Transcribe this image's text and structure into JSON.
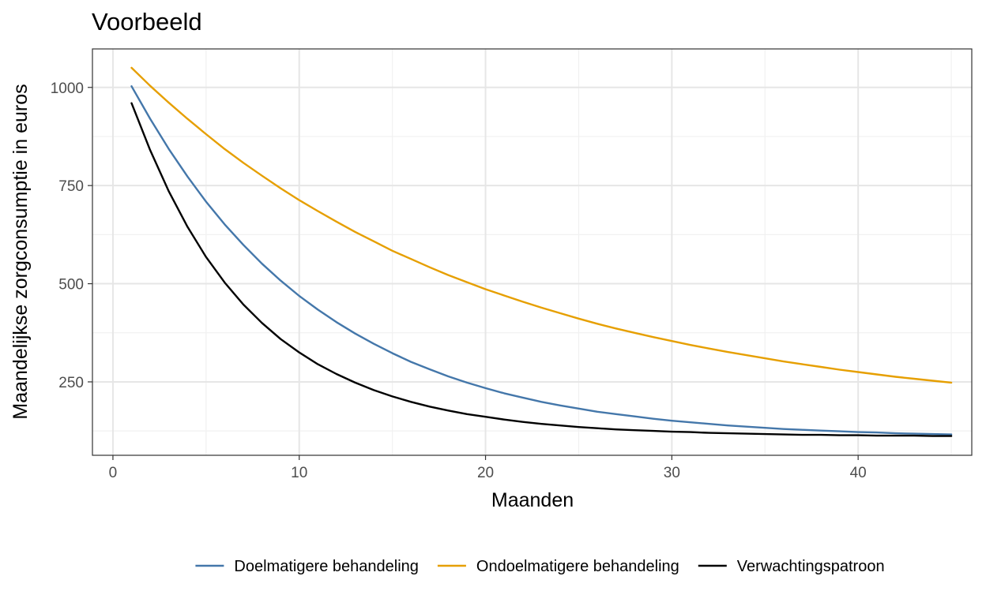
{
  "chart_data": {
    "type": "line",
    "title": "Voorbeeld",
    "xlabel": "Maanden",
    "ylabel": "Maandelijkse zorgconsumptie in euros",
    "xlim": [
      -1.1,
      46.1
    ],
    "ylim": [
      63,
      1098
    ],
    "x_ticks": [
      0,
      10,
      20,
      30,
      40
    ],
    "y_ticks": [
      250,
      500,
      750,
      1000
    ],
    "grid": true,
    "legend_position": "bottom",
    "x": [
      1,
      2,
      3,
      4,
      5,
      6,
      7,
      8,
      9,
      10,
      11,
      12,
      13,
      14,
      15,
      16,
      17,
      18,
      19,
      20,
      21,
      22,
      23,
      24,
      25,
      26,
      27,
      28,
      29,
      30,
      31,
      32,
      33,
      34,
      35,
      36,
      37,
      38,
      39,
      40,
      41,
      42,
      43,
      44,
      45
    ],
    "series": [
      {
        "name": "Doelmatigere behandeling",
        "color": "#4477aa",
        "values": [
          1003,
          920,
          843,
          773,
          709,
          651,
          599,
          551,
          508,
          469,
          434,
          402,
          373,
          347,
          323,
          301,
          282,
          264,
          248,
          234,
          221,
          210,
          199,
          190,
          182,
          174,
          168,
          162,
          156,
          151,
          147,
          143,
          139,
          136,
          133,
          130,
          128,
          126,
          124,
          122,
          121,
          119,
          118,
          117,
          116
        ]
      },
      {
        "name": "Ondoelmatigere behandeling",
        "color": "#e69f00",
        "values": [
          1050,
          1004,
          961,
          920,
          881,
          843,
          808,
          775,
          743,
          713,
          685,
          658,
          632,
          608,
          584,
          563,
          542,
          522,
          504,
          486,
          470,
          454,
          439,
          425,
          411,
          398,
          386,
          375,
          364,
          354,
          344,
          335,
          326,
          318,
          310,
          302,
          295,
          288,
          281,
          275,
          269,
          263,
          258,
          253,
          248
        ]
      },
      {
        "name": "Verwachtingspatroon",
        "color": "#000000",
        "values": [
          960,
          840,
          735,
          645,
          568,
          503,
          447,
          400,
          359,
          325,
          295,
          270,
          248,
          229,
          213,
          199,
          187,
          177,
          168,
          161,
          154,
          148,
          143,
          139,
          135,
          132,
          129,
          127,
          125,
          123,
          122,
          120,
          119,
          118,
          117,
          116,
          115,
          115,
          114,
          114,
          113,
          113,
          113,
          112,
          112
        ]
      }
    ]
  }
}
